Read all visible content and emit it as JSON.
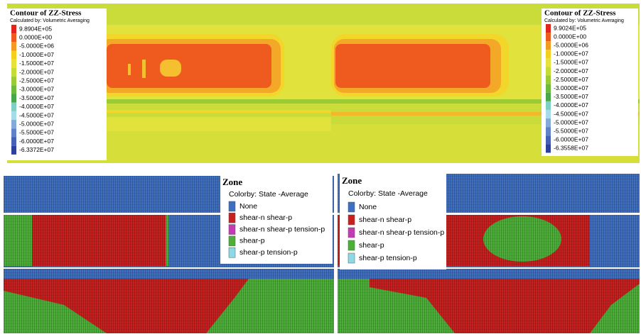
{
  "contour_panels": [
    {
      "title": "Contour of ZZ-Stress",
      "subtitle": "Calculated by: Volumetric Averaging",
      "entries": [
        {
          "label": "9.8904E+05",
          "color": "#e0261c"
        },
        {
          "label": "0.0000E+00",
          "color": "#ef5a1e"
        },
        {
          "label": "-5.0000E+06",
          "color": "#f39a22"
        },
        {
          "label": "-1.0000E+07",
          "color": "#f5cf1e"
        },
        {
          "label": "-1.5000E+07",
          "color": "#e6e23a"
        },
        {
          "label": "-2.0000E+07",
          "color": "#c4dc34"
        },
        {
          "label": "-2.5000E+07",
          "color": "#9acb34"
        },
        {
          "label": "-3.0000E+07",
          "color": "#6dbb3c"
        },
        {
          "label": "-3.5000E+07",
          "color": "#46a84a"
        },
        {
          "label": "-4.0000E+07",
          "color": "#7fd0c4"
        },
        {
          "label": "-4.5000E+07",
          "color": "#a6dbea"
        },
        {
          "label": "-5.0000E+07",
          "color": "#84a9da"
        },
        {
          "label": "-5.5000E+07",
          "color": "#6182c8"
        },
        {
          "label": "-6.0000E+07",
          "color": "#4461b6"
        },
        {
          "label": "-6.3372E+07",
          "color": "#2f3f9e"
        }
      ]
    },
    {
      "title": "Contour of ZZ-Stress",
      "subtitle": "Calculated by: Volumetric Averaging",
      "entries": [
        {
          "label": "9.9024E+05",
          "color": "#e0261c"
        },
        {
          "label": "0.0000E+00",
          "color": "#ef5a1e"
        },
        {
          "label": "-5.0000E+06",
          "color": "#f39a22"
        },
        {
          "label": "-1.0000E+07",
          "color": "#f5cf1e"
        },
        {
          "label": "-1.5000E+07",
          "color": "#e6e23a"
        },
        {
          "label": "-2.0000E+07",
          "color": "#c4dc34"
        },
        {
          "label": "-2.5000E+07",
          "color": "#9acb34"
        },
        {
          "label": "-3.0000E+07",
          "color": "#6dbb3c"
        },
        {
          "label": "-3.5000E+07",
          "color": "#46a84a"
        },
        {
          "label": "-4.0000E+07",
          "color": "#7fd0c4"
        },
        {
          "label": "-4.5000E+07",
          "color": "#a6dbea"
        },
        {
          "label": "-5.0000E+07",
          "color": "#84a9da"
        },
        {
          "label": "-5.5000E+07",
          "color": "#6182c8"
        },
        {
          "label": "-6.0000E+07",
          "color": "#4461b6"
        },
        {
          "label": "-6.3558E+07",
          "color": "#2f3f9e"
        }
      ]
    }
  ],
  "zone_panels": [
    {
      "title": "Zone",
      "subtitle": "Colorby: State  -Average",
      "entries": [
        {
          "label": "None",
          "color": "#3f6fc0"
        },
        {
          "label": "shear-n shear-p",
          "color": "#c8201e"
        },
        {
          "label": "shear-n shear-p tension-p",
          "color": "#c43cb4"
        },
        {
          "label": "shear-p",
          "color": "#4cb038"
        },
        {
          "label": "shear-p tension-p",
          "color": "#8fd8e6"
        }
      ]
    },
    {
      "title": "Zone",
      "subtitle": "Colorby: State  -Average",
      "entries": [
        {
          "label": "None",
          "color": "#3f6fc0"
        },
        {
          "label": "shear-n shear-p",
          "color": "#c8201e"
        },
        {
          "label": "shear-n shear-p tension-p",
          "color": "#c43cb4"
        },
        {
          "label": "shear-p",
          "color": "#4cb038"
        },
        {
          "label": "shear-p tension-p",
          "color": "#8fd8e6"
        }
      ]
    }
  ]
}
